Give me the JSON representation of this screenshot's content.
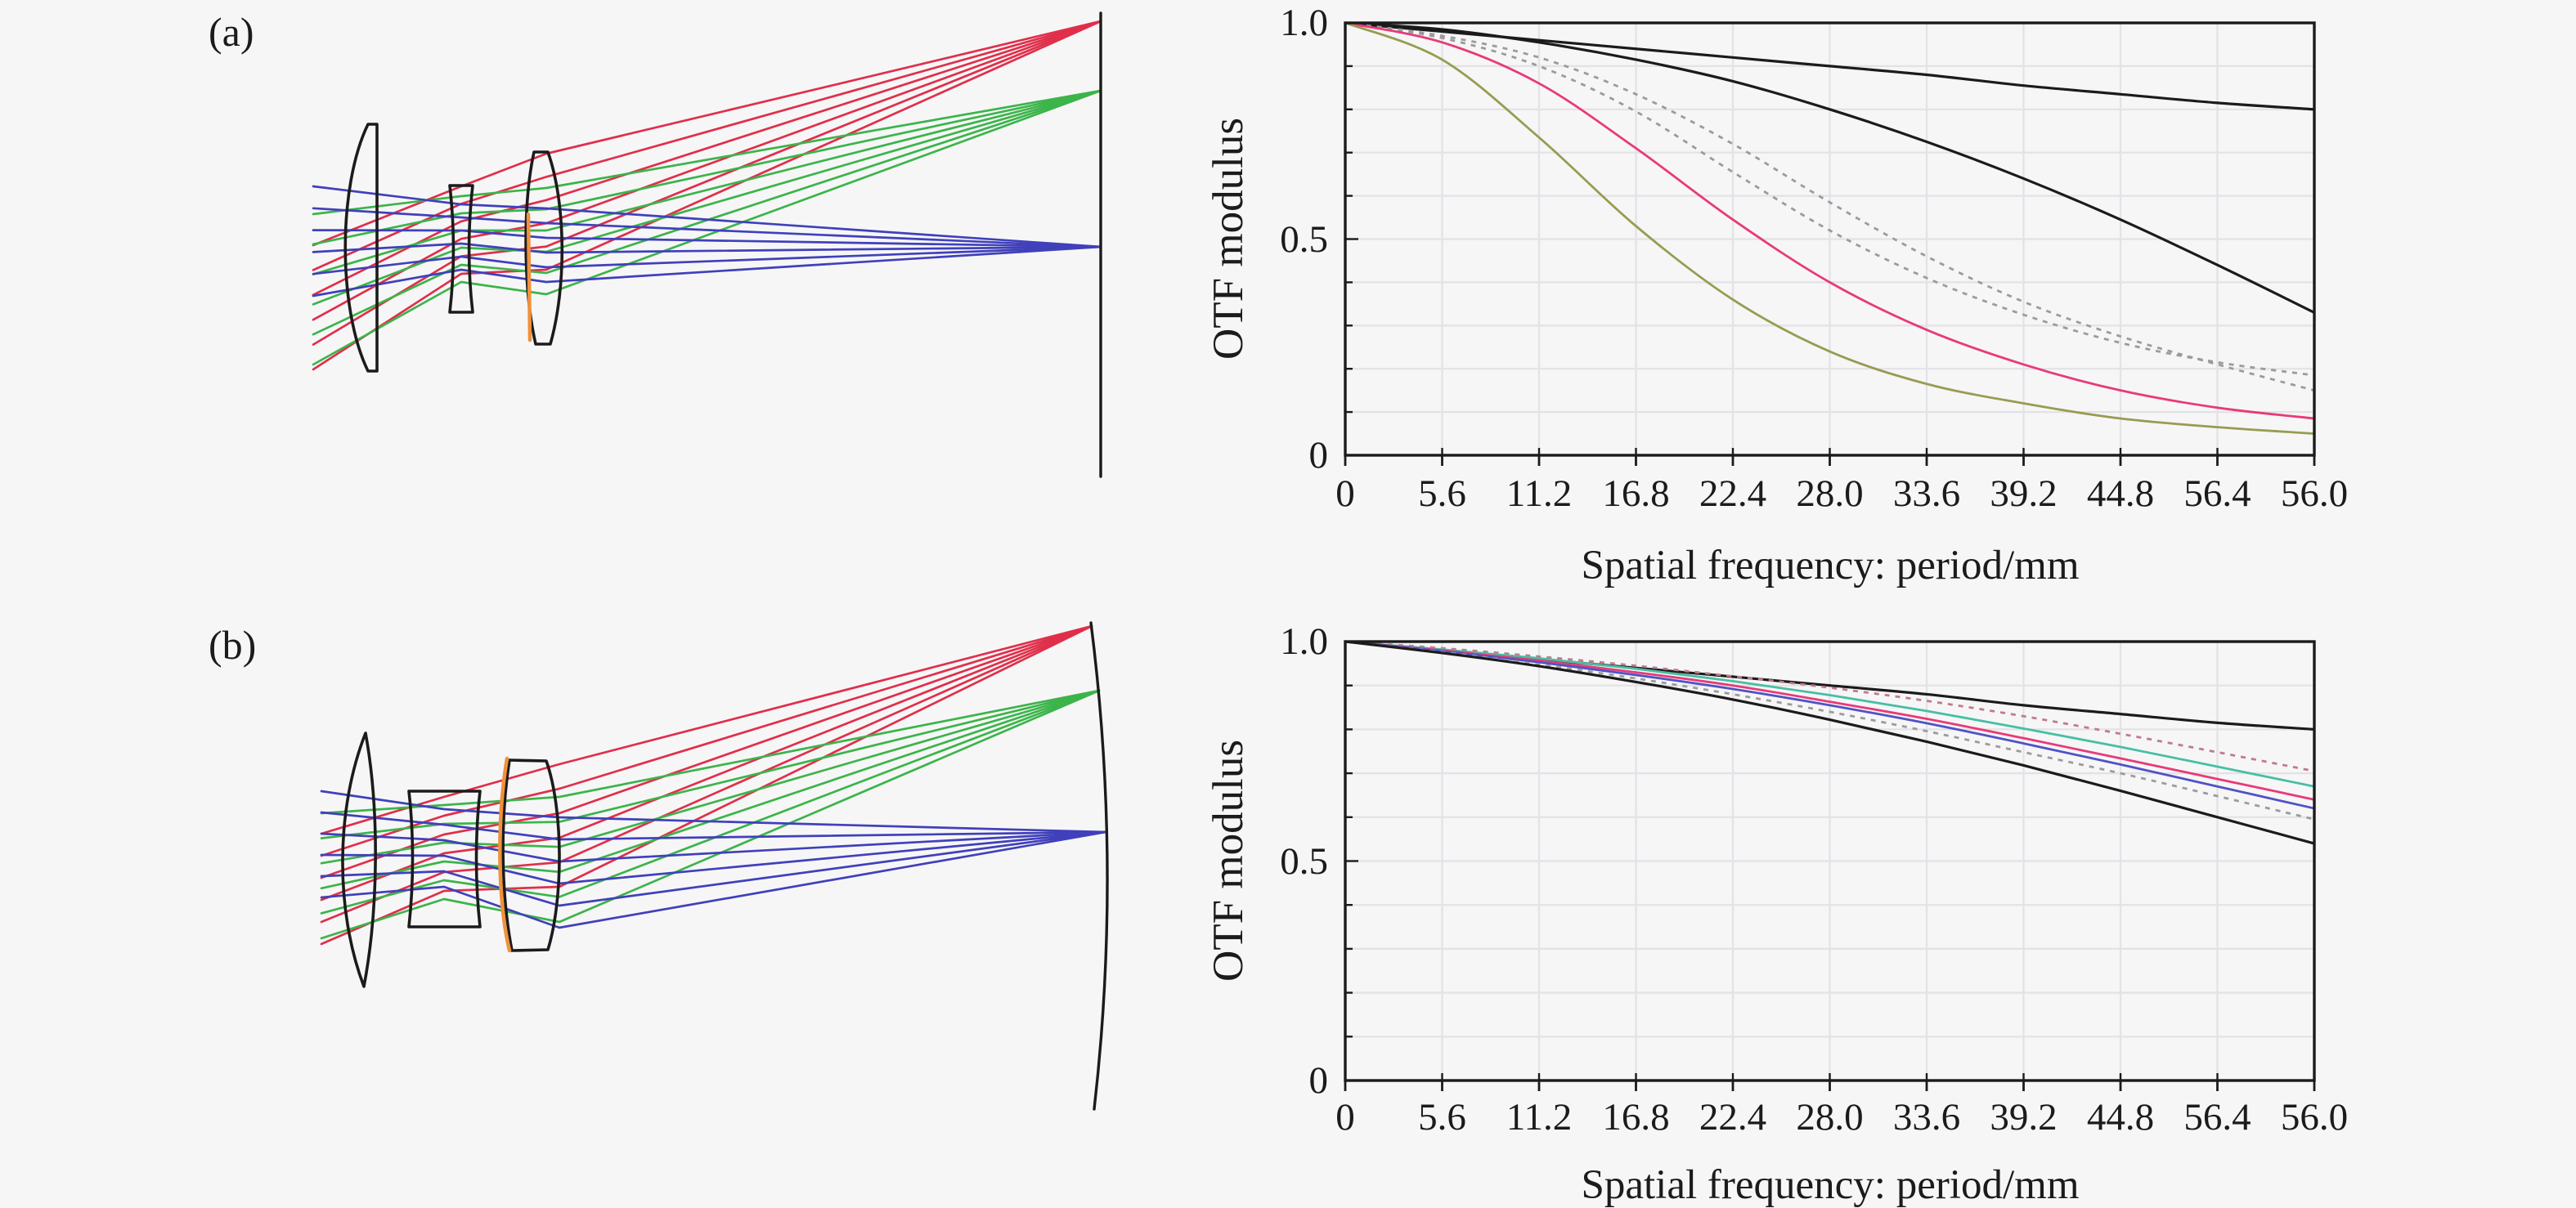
{
  "figure": {
    "background": "#f6f6f7",
    "ink_color": "#1b1b1b",
    "grid_color": "#e2e2e7"
  },
  "panels": [
    {
      "label": "(a)",
      "lens_diagram": {
        "elements": [
          "front-lens",
          "middle-lens",
          "rear-lens",
          "aperture-stop",
          "image-plane"
        ],
        "stop_color": "#f0913c",
        "image_plane": {
          "shape": "flat-vertical-line"
        },
        "ray_bundles": [
          {
            "name": "red-field-bundle",
            "color": "#e02f4a",
            "rays": 6,
            "entry_x": 383,
            "mid_x": 564,
            "exit_x": 668,
            "entry_y": [
              300,
              452
            ],
            "mid_y": [
              228,
              335
            ],
            "exit_y": [
              188,
              330
            ],
            "focus": [
              1346,
              26
            ]
          },
          {
            "name": "green-field-bundle",
            "color": "#3cb44a",
            "rays": 6,
            "entry_x": 383,
            "mid_x": 564,
            "exit_x": 668,
            "entry_y": [
              262,
              446
            ],
            "mid_y": [
              240,
              345
            ],
            "exit_y": [
              230,
              360
            ],
            "focus": [
              1346,
              111
            ]
          },
          {
            "name": "blue-axis-bundle",
            "color": "#4040bb",
            "rays": 6,
            "entry_x": 383,
            "mid_x": 564,
            "exit_x": 668,
            "entry_y": [
              228,
              362
            ],
            "mid_y": [
              250,
              330
            ],
            "exit_y": [
              255,
              345
            ],
            "focus": [
              1346,
              302
            ]
          }
        ]
      }
    },
    {
      "label": "(b)",
      "lens_diagram": {
        "elements": [
          "front-lens",
          "middle-lens",
          "rear-lens",
          "aperture-stop",
          "curved-image-plane"
        ],
        "stop_color": "#f0913c",
        "image_plane": {
          "shape": "curved-arc-concave-left"
        },
        "ray_bundles": [
          {
            "name": "red-field-bundle",
            "color": "#e02f4a",
            "rays": 6,
            "entry_x": 393,
            "mid_x": 543,
            "exit_x": 684,
            "entry_y": [
              1020,
              1155
            ],
            "mid_y": [
              975,
              1090
            ],
            "exit_y": [
              935,
              1085
            ],
            "focus": [
              1335,
              766
            ]
          },
          {
            "name": "green-field-bundle",
            "color": "#3cb44a",
            "rays": 6,
            "entry_x": 393,
            "mid_x": 543,
            "exit_x": 684,
            "entry_y": [
              995,
              1148
            ],
            "mid_y": [
              985,
              1100
            ],
            "exit_y": [
              975,
              1128
            ],
            "focus": [
              1344,
              845
            ]
          },
          {
            "name": "blue-axis-bundle",
            "color": "#4040bb",
            "rays": 6,
            "entry_x": 393,
            "mid_x": 543,
            "exit_x": 684,
            "entry_y": [
              968,
              1098
            ],
            "mid_y": [
              990,
              1085
            ],
            "exit_y": [
              1000,
              1135
            ],
            "focus": [
              1352,
              1018
            ]
          }
        ]
      }
    }
  ],
  "chart_data": [
    {
      "type": "line",
      "title": "",
      "xlabel": "Spatial frequency: period/mm",
      "ylabel": "OTF modulus",
      "x_tick_labels": [
        "0",
        "5.6",
        "11.2",
        "16.8",
        "22.4",
        "28.0",
        "33.6",
        "39.2",
        "44.8",
        "56.4",
        "56.0"
      ],
      "y_tick_labels": [
        "1.0",
        "0.5",
        "0"
      ],
      "y_tick_values": [
        1.0,
        0.5,
        0
      ],
      "ylim": [
        0,
        1
      ],
      "grid": "light gray; vertical line at every x tick, horizontal line every 0.1",
      "legend": "none",
      "series": [
        {
          "name": "black-solid-upper (diffraction limit)",
          "color": "#1b1b1b",
          "dash": "solid",
          "values": [
            1.0,
            0.98,
            0.96,
            0.94,
            0.92,
            0.9,
            0.88,
            0.855,
            0.835,
            0.815,
            0.8
          ]
        },
        {
          "name": "black-solid-lower",
          "color": "#1b1b1b",
          "dash": "solid",
          "values": [
            1.0,
            0.985,
            0.955,
            0.915,
            0.865,
            0.8,
            0.725,
            0.64,
            0.545,
            0.44,
            0.33
          ]
        },
        {
          "name": "gray-dashed-1",
          "color": "#9b9b9b",
          "dash": "dashed",
          "values": [
            1.0,
            0.965,
            0.9,
            0.795,
            0.655,
            0.52,
            0.41,
            0.325,
            0.26,
            0.215,
            0.185
          ]
        },
        {
          "name": "gray-dashed-2",
          "color": "#9b9b9b",
          "dash": "dashed",
          "values": [
            1.0,
            0.97,
            0.92,
            0.835,
            0.72,
            0.585,
            0.46,
            0.355,
            0.275,
            0.21,
            0.15
          ]
        },
        {
          "name": "pink-solid",
          "color": "#e83a78",
          "dash": "solid",
          "values": [
            1.0,
            0.955,
            0.86,
            0.71,
            0.545,
            0.4,
            0.29,
            0.21,
            0.15,
            0.11,
            0.085
          ]
        },
        {
          "name": "olive-gray-solid",
          "color": "#989c50",
          "dash": "solid",
          "values": [
            1.0,
            0.915,
            0.735,
            0.53,
            0.36,
            0.24,
            0.165,
            0.12,
            0.085,
            0.065,
            0.05
          ]
        }
      ]
    },
    {
      "type": "line",
      "title": "",
      "xlabel": "Spatial frequency: period/mm",
      "ylabel": "OTF modulus",
      "x_tick_labels": [
        "0",
        "5.6",
        "11.2",
        "16.8",
        "22.4",
        "28.0",
        "33.6",
        "39.2",
        "44.8",
        "56.4",
        "56.0"
      ],
      "y_tick_labels": [
        "1.0",
        "0.5",
        "0"
      ],
      "y_tick_values": [
        1.0,
        0.5,
        0
      ],
      "ylim": [
        0,
        1
      ],
      "grid": "light gray; vertical line at every x tick, horizontal line every 0.1",
      "legend": "none",
      "series": [
        {
          "name": "black-solid-upper (diffraction limit)",
          "color": "#1b1b1b",
          "dash": "solid",
          "values": [
            1.0,
            0.98,
            0.96,
            0.94,
            0.92,
            0.9,
            0.88,
            0.855,
            0.835,
            0.815,
            0.8
          ]
        },
        {
          "name": "red-gray-dashed",
          "color": "#c2798f",
          "dash": "dashed",
          "values": [
            1.0,
            0.985,
            0.966,
            0.945,
            0.921,
            0.895,
            0.865,
            0.83,
            0.79,
            0.748,
            0.705
          ]
        },
        {
          "name": "teal-solid",
          "color": "#47bfa3",
          "dash": "solid",
          "values": [
            1.0,
            0.982,
            0.962,
            0.938,
            0.91,
            0.878,
            0.842,
            0.802,
            0.76,
            0.715,
            0.67
          ]
        },
        {
          "name": "pink-solid",
          "color": "#e83a78",
          "dash": "solid",
          "values": [
            1.0,
            0.98,
            0.957,
            0.93,
            0.9,
            0.863,
            0.824,
            0.78,
            0.734,
            0.687,
            0.64
          ]
        },
        {
          "name": "blue-solid",
          "color": "#5053c4",
          "dash": "solid",
          "values": [
            1.0,
            0.978,
            0.953,
            0.924,
            0.892,
            0.855,
            0.814,
            0.768,
            0.72,
            0.67,
            0.62
          ]
        },
        {
          "name": "gray-dashed",
          "color": "#9b9b9b",
          "dash": "dashed",
          "values": [
            1.0,
            0.976,
            0.948,
            0.916,
            0.88,
            0.84,
            0.796,
            0.748,
            0.7,
            0.648,
            0.595
          ]
        },
        {
          "name": "black-solid-lower",
          "color": "#1b1b1b",
          "dash": "solid",
          "values": [
            1.0,
            0.974,
            0.944,
            0.908,
            0.868,
            0.822,
            0.772,
            0.718,
            0.66,
            0.6,
            0.54
          ]
        }
      ]
    }
  ]
}
